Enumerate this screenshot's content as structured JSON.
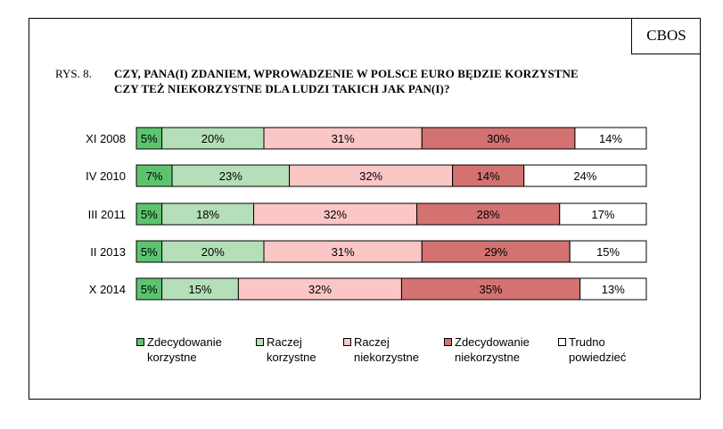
{
  "badge": "CBOS",
  "figure_number": "RYS. 8.",
  "title_line1": "CZY, PANA(I) ZDANIEM, WPROWADZENIE W POLSCE EURO BĘDZIE KORZYSTNE",
  "title_line2": "CZY TEŻ NIEKORZYSTNE DLA LUDZI TAKICH JAK PAN(I)?",
  "colors": {
    "s1": "#5cc46e",
    "s2": "#b4dfb8",
    "s3": "#fbc6c6",
    "s4": "#d47272",
    "s5": "#ffffff"
  },
  "legend": [
    {
      "line1": "Zdecydowanie",
      "line2": "korzystne"
    },
    {
      "line1": "Raczej",
      "line2": "korzystne"
    },
    {
      "line1": "Raczej",
      "line2": "niekorzystne"
    },
    {
      "line1": "Zdecydowanie",
      "line2": "niekorzystne"
    },
    {
      "line1": "Trudno",
      "line2": "powiedzieć"
    }
  ],
  "chart_data": {
    "type": "bar",
    "orientation": "horizontal-stacked-100",
    "title": "CZY, PANA(I) ZDANIEM, WPROWADZENIE W POLSCE EURO BĘDZIE KORZYSTNE CZY TEŻ NIEKORZYSTNE DLA LUDZI TAKICH JAK PAN(I)?",
    "categories": [
      "XI 2008",
      "IV 2010",
      "III 2011",
      "II 2013",
      "X 2014"
    ],
    "series": [
      {
        "name": "Zdecydowanie korzystne",
        "values": [
          5,
          7,
          5,
          5,
          5
        ],
        "labels": [
          "5%",
          "7%",
          "5%",
          "5%",
          "5%"
        ]
      },
      {
        "name": "Raczej korzystne",
        "values": [
          20,
          23,
          18,
          20,
          15
        ],
        "labels": [
          "20%",
          "23%",
          "18%",
          "20%",
          "15%"
        ]
      },
      {
        "name": "Raczej niekorzystne",
        "values": [
          31,
          32,
          32,
          31,
          32
        ],
        "labels": [
          "31%",
          "32%",
          "32%",
          "31%",
          "32%"
        ]
      },
      {
        "name": "Zdecydowanie niekorzystne",
        "values": [
          30,
          14,
          28,
          29,
          35
        ],
        "labels": [
          "30%",
          "14%",
          "28%",
          "29%",
          "35%"
        ]
      },
      {
        "name": "Trudno powiedzieć",
        "values": [
          14,
          24,
          17,
          15,
          13
        ],
        "labels": [
          "14%",
          "24%",
          "17%",
          "15%",
          "13%"
        ]
      }
    ],
    "xlim": [
      0,
      100
    ],
    "legend_position": "bottom",
    "grid": false
  }
}
